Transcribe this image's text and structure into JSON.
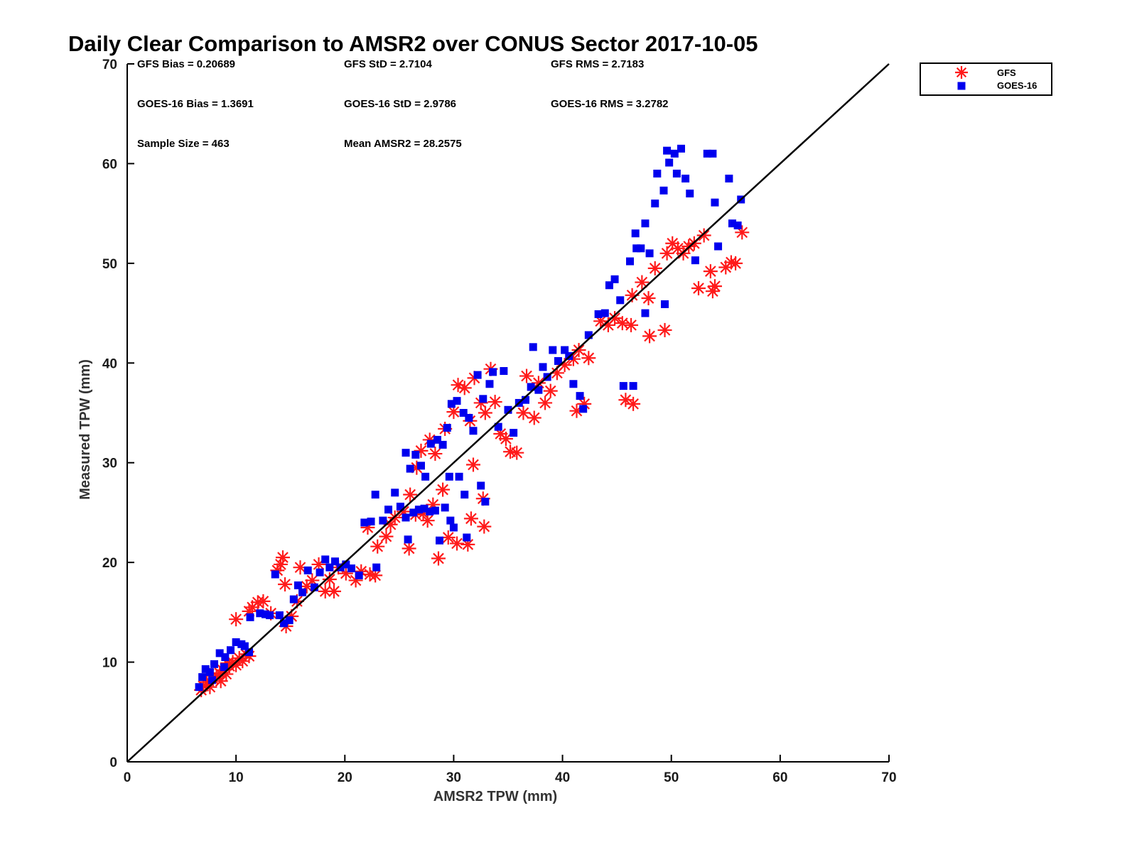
{
  "chart_data": {
    "type": "scatter",
    "title": "Daily Clear Comparison to AMSR2 over CONUS Sector 2017-10-05",
    "xlabel": "AMSR2 TPW (mm)",
    "ylabel": "Measured TPW (mm)",
    "xlim": [
      0,
      70
    ],
    "ylim": [
      0,
      70
    ],
    "xticks": [
      "0",
      "10",
      "20",
      "30",
      "40",
      "50",
      "60",
      "70"
    ],
    "yticks": [
      "0",
      "10",
      "20",
      "30",
      "40",
      "50",
      "60",
      "70"
    ],
    "grid": false,
    "legend_position": "top-right outside",
    "reference_line": "1:1",
    "stats": [
      [
        "GFS Bias = 0.20689",
        "GFS StD = 2.7104",
        "GFS RMS = 2.7183"
      ],
      [
        "GOES-16 Bias = 1.3691",
        "GOES-16 StD = 2.9786",
        "GOES-16 RMS = 3.2782"
      ],
      [
        "Sample Size = 463",
        "Mean AMSR2 = 28.2575",
        ""
      ]
    ],
    "series": [
      {
        "name": "GFS",
        "color": "#ff1a1a",
        "marker": "asterisk",
        "points": [
          [
            6.8,
            7.2
          ],
          [
            7.0,
            7.6
          ],
          [
            7.3,
            8.0
          ],
          [
            7.6,
            7.5
          ],
          [
            7.9,
            8.3
          ],
          [
            8.2,
            8.6
          ],
          [
            8.5,
            8.9
          ],
          [
            8.8,
            9.2
          ],
          [
            9.1,
            8.8
          ],
          [
            9.4,
            9.6
          ],
          [
            9.7,
            10.0
          ],
          [
            10.0,
            9.7
          ],
          [
            10.3,
            10.4
          ],
          [
            10.6,
            10.1
          ],
          [
            10.9,
            10.8
          ],
          [
            11.2,
            10.6
          ],
          [
            7.5,
            8.8
          ],
          [
            8.6,
            8.1
          ],
          [
            9.2,
            9.9
          ],
          [
            10.0,
            14.3
          ],
          [
            11.2,
            15.1
          ],
          [
            11.5,
            15.5
          ],
          [
            12.0,
            16.0
          ],
          [
            12.5,
            16.1
          ],
          [
            13.2,
            14.9
          ],
          [
            13.8,
            19.2
          ],
          [
            14.1,
            19.8
          ],
          [
            14.3,
            20.5
          ],
          [
            14.5,
            17.8
          ],
          [
            14.6,
            13.6
          ],
          [
            15.1,
            14.6
          ],
          [
            15.6,
            16.1
          ],
          [
            15.9,
            19.5
          ],
          [
            16.5,
            17.6
          ],
          [
            17.0,
            18.2
          ],
          [
            17.6,
            19.8
          ],
          [
            18.2,
            17.1
          ],
          [
            18.6,
            18.3
          ],
          [
            19.0,
            17.1
          ],
          [
            19.4,
            19.5
          ],
          [
            20.1,
            18.9
          ],
          [
            21.0,
            18.2
          ],
          [
            21.5,
            19.1
          ],
          [
            22.3,
            18.8
          ],
          [
            22.8,
            18.7
          ],
          [
            22.1,
            23.5
          ],
          [
            23.0,
            21.6
          ],
          [
            23.8,
            22.6
          ],
          [
            24.2,
            23.8
          ],
          [
            24.6,
            24.5
          ],
          [
            25.4,
            25.1
          ],
          [
            25.9,
            21.4
          ],
          [
            26.5,
            24.8
          ],
          [
            27.2,
            24.9
          ],
          [
            27.6,
            24.2
          ],
          [
            28.1,
            25.8
          ],
          [
            28.6,
            20.4
          ],
          [
            29.0,
            27.3
          ],
          [
            29.5,
            22.5
          ],
          [
            30.3,
            21.9
          ],
          [
            31.3,
            21.8
          ],
          [
            31.6,
            24.4
          ],
          [
            31.8,
            29.8
          ],
          [
            32.7,
            26.4
          ],
          [
            32.8,
            23.6
          ],
          [
            26.0,
            26.8
          ],
          [
            26.6,
            29.5
          ],
          [
            27.0,
            31.2
          ],
          [
            27.8,
            32.3
          ],
          [
            28.3,
            30.9
          ],
          [
            29.2,
            33.4
          ],
          [
            30.0,
            35.1
          ],
          [
            30.4,
            37.8
          ],
          [
            31.0,
            37.5
          ],
          [
            31.5,
            34.2
          ],
          [
            31.9,
            38.5
          ],
          [
            32.5,
            36.0
          ],
          [
            32.9,
            35.0
          ],
          [
            33.4,
            39.4
          ],
          [
            33.8,
            36.1
          ],
          [
            34.3,
            32.9
          ],
          [
            34.8,
            32.4
          ],
          [
            35.2,
            31.1
          ],
          [
            35.8,
            31.0
          ],
          [
            36.4,
            35.0
          ],
          [
            36.7,
            38.7
          ],
          [
            37.4,
            34.5
          ],
          [
            37.8,
            38.0
          ],
          [
            38.4,
            36.0
          ],
          [
            38.9,
            37.2
          ],
          [
            39.5,
            39.0
          ],
          [
            40.2,
            39.8
          ],
          [
            41.0,
            40.4
          ],
          [
            41.5,
            41.3
          ],
          [
            41.3,
            35.2
          ],
          [
            42.0,
            35.9
          ],
          [
            42.4,
            40.5
          ],
          [
            43.5,
            44.2
          ],
          [
            44.2,
            43.8
          ],
          [
            44.8,
            44.5
          ],
          [
            45.5,
            44.0
          ],
          [
            46.3,
            43.8
          ],
          [
            45.8,
            36.3
          ],
          [
            46.5,
            35.9
          ],
          [
            46.4,
            46.8
          ],
          [
            47.3,
            48.1
          ],
          [
            47.9,
            46.5
          ],
          [
            48.0,
            42.7
          ],
          [
            48.5,
            49.5
          ],
          [
            49.4,
            43.3
          ],
          [
            49.6,
            51.0
          ],
          [
            50.1,
            52.0
          ],
          [
            50.6,
            51.5
          ],
          [
            51.1,
            51.0
          ],
          [
            51.6,
            51.7
          ],
          [
            52.1,
            52.0
          ],
          [
            52.5,
            47.5
          ],
          [
            53.0,
            52.8
          ],
          [
            53.6,
            49.2
          ],
          [
            54.0,
            47.7
          ],
          [
            53.8,
            47.2
          ],
          [
            55.0,
            49.6
          ],
          [
            55.5,
            50.1
          ],
          [
            55.9,
            50.0
          ],
          [
            56.5,
            53.1
          ]
        ]
      },
      {
        "name": "GOES-16",
        "color": "#0000ee",
        "marker": "square",
        "points": [
          [
            6.6,
            7.5
          ],
          [
            6.9,
            8.5
          ],
          [
            7.2,
            9.3
          ],
          [
            7.6,
            9.0
          ],
          [
            8.0,
            9.8
          ],
          [
            8.5,
            10.9
          ],
          [
            9.0,
            10.5
          ],
          [
            9.5,
            11.2
          ],
          [
            10.0,
            12.0
          ],
          [
            10.5,
            11.8
          ],
          [
            10.8,
            11.6
          ],
          [
            11.2,
            11.0
          ],
          [
            7.8,
            8.2
          ],
          [
            8.9,
            9.5
          ],
          [
            11.3,
            14.5
          ],
          [
            12.2,
            14.9
          ],
          [
            12.7,
            14.8
          ],
          [
            13.1,
            14.7
          ],
          [
            13.6,
            18.8
          ],
          [
            14.0,
            14.7
          ],
          [
            14.4,
            13.9
          ],
          [
            14.9,
            14.2
          ],
          [
            15.3,
            16.3
          ],
          [
            15.7,
            17.7
          ],
          [
            16.1,
            17.0
          ],
          [
            16.6,
            19.2
          ],
          [
            17.2,
            17.5
          ],
          [
            17.7,
            19.0
          ],
          [
            18.2,
            20.3
          ],
          [
            18.6,
            19.5
          ],
          [
            19.1,
            20.1
          ],
          [
            19.6,
            19.5
          ],
          [
            20.1,
            19.8
          ],
          [
            20.6,
            19.4
          ],
          [
            21.3,
            18.7
          ],
          [
            21.8,
            24.0
          ],
          [
            22.4,
            24.1
          ],
          [
            22.8,
            26.8
          ],
          [
            22.9,
            19.5
          ],
          [
            23.5,
            24.2
          ],
          [
            24.0,
            25.3
          ],
          [
            24.6,
            27.0
          ],
          [
            25.1,
            25.6
          ],
          [
            25.6,
            24.5
          ],
          [
            25.8,
            22.3
          ],
          [
            26.3,
            25.0
          ],
          [
            26.8,
            25.3
          ],
          [
            27.3,
            25.4
          ],
          [
            27.8,
            25.1
          ],
          [
            28.3,
            25.2
          ],
          [
            28.7,
            22.2
          ],
          [
            29.2,
            25.5
          ],
          [
            29.7,
            24.2
          ],
          [
            30.0,
            23.5
          ],
          [
            31.2,
            22.5
          ],
          [
            29.6,
            28.6
          ],
          [
            30.5,
            28.6
          ],
          [
            31.0,
            26.8
          ],
          [
            32.5,
            27.7
          ],
          [
            32.9,
            26.1
          ],
          [
            25.6,
            31.0
          ],
          [
            26.0,
            29.4
          ],
          [
            26.5,
            30.8
          ],
          [
            27.0,
            29.7
          ],
          [
            27.4,
            28.6
          ],
          [
            27.9,
            31.9
          ],
          [
            28.5,
            32.3
          ],
          [
            29.0,
            31.8
          ],
          [
            29.4,
            33.5
          ],
          [
            29.8,
            35.9
          ],
          [
            30.3,
            36.2
          ],
          [
            30.9,
            35.0
          ],
          [
            31.4,
            34.5
          ],
          [
            31.8,
            33.2
          ],
          [
            32.2,
            38.8
          ],
          [
            32.7,
            36.4
          ],
          [
            33.3,
            37.9
          ],
          [
            33.6,
            39.1
          ],
          [
            34.1,
            33.6
          ],
          [
            34.6,
            39.2
          ],
          [
            35.0,
            35.3
          ],
          [
            35.5,
            33.0
          ],
          [
            36.0,
            36.0
          ],
          [
            36.6,
            36.3
          ],
          [
            37.1,
            37.6
          ],
          [
            37.3,
            41.6
          ],
          [
            37.8,
            37.3
          ],
          [
            38.2,
            39.6
          ],
          [
            38.6,
            38.6
          ],
          [
            39.1,
            41.3
          ],
          [
            39.6,
            40.2
          ],
          [
            40.2,
            41.3
          ],
          [
            40.6,
            40.7
          ],
          [
            41.0,
            37.9
          ],
          [
            41.6,
            36.7
          ],
          [
            41.9,
            35.4
          ],
          [
            42.4,
            42.8
          ],
          [
            43.3,
            44.9
          ],
          [
            43.9,
            45.0
          ],
          [
            44.3,
            47.8
          ],
          [
            44.8,
            48.4
          ],
          [
            45.3,
            46.3
          ],
          [
            45.6,
            37.7
          ],
          [
            46.5,
            37.7
          ],
          [
            46.2,
            50.2
          ],
          [
            46.7,
            53.0
          ],
          [
            47.2,
            51.5
          ],
          [
            47.6,
            54.0
          ],
          [
            48.0,
            51.0
          ],
          [
            48.5,
            56.0
          ],
          [
            48.7,
            59.0
          ],
          [
            49.3,
            57.3
          ],
          [
            49.6,
            61.3
          ],
          [
            49.8,
            60.1
          ],
          [
            50.3,
            61.0
          ],
          [
            50.5,
            59.0
          ],
          [
            50.9,
            61.5
          ],
          [
            51.3,
            58.5
          ],
          [
            51.7,
            57.0
          ],
          [
            52.2,
            50.3
          ],
          [
            53.3,
            61.0
          ],
          [
            53.8,
            61.0
          ],
          [
            54.0,
            56.1
          ],
          [
            54.3,
            51.7
          ],
          [
            55.3,
            58.5
          ],
          [
            55.6,
            54.0
          ],
          [
            56.1,
            53.8
          ],
          [
            56.4,
            56.4
          ],
          [
            47.6,
            45.0
          ],
          [
            46.8,
            51.5
          ],
          [
            49.4,
            45.9
          ]
        ]
      }
    ]
  }
}
